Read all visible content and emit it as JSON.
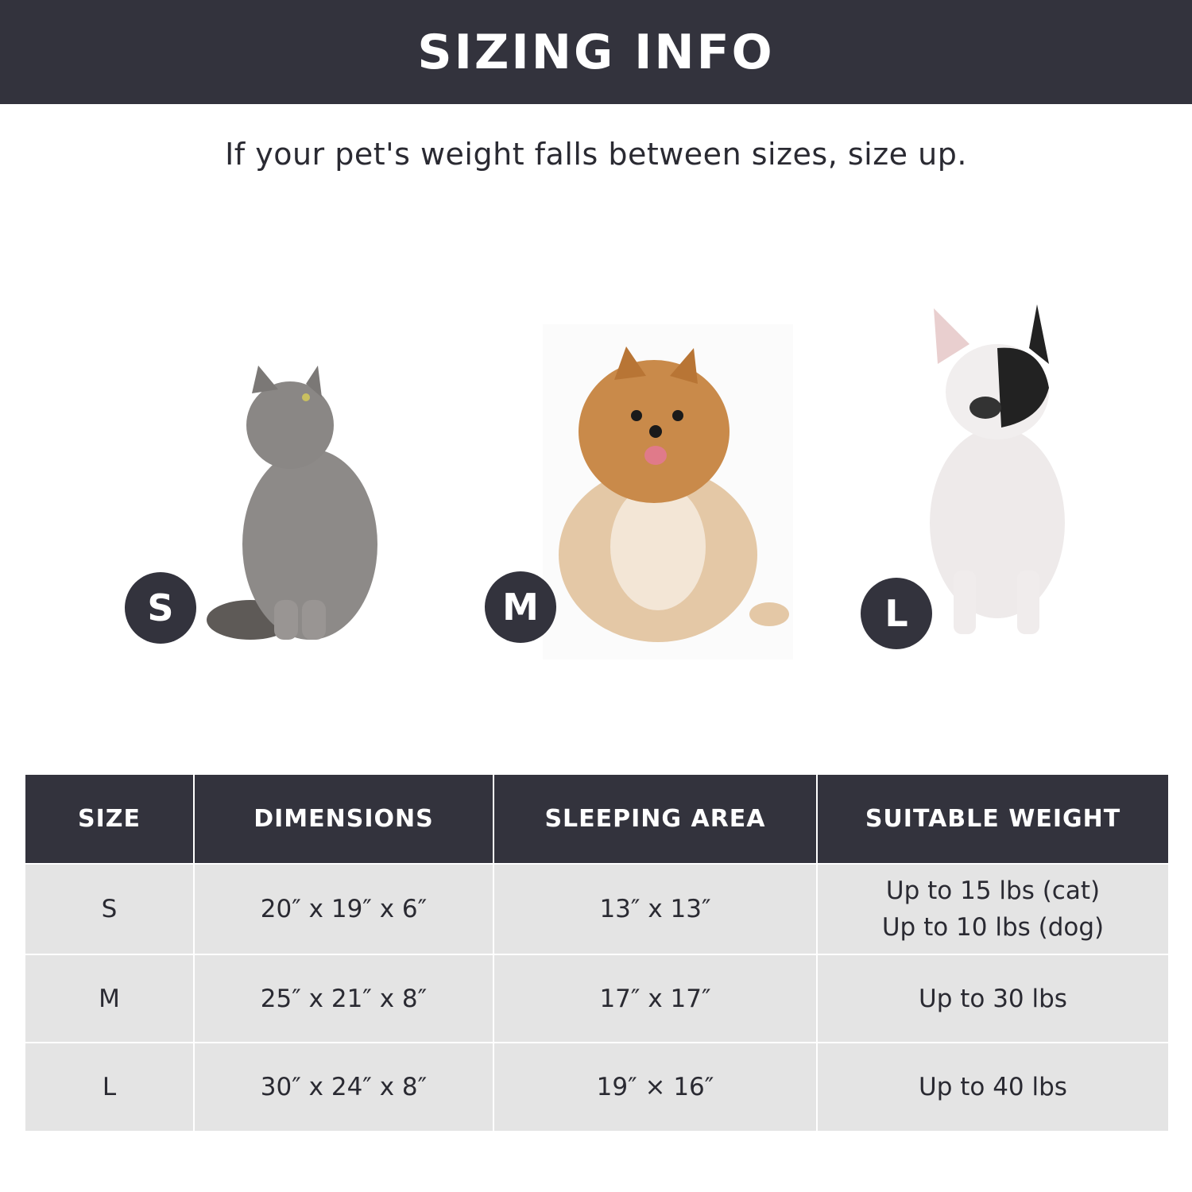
{
  "header": {
    "title": "SIZING INFO"
  },
  "subtitle": "If your pet's weight falls between sizes, size up.",
  "pets": [
    {
      "badge": "S",
      "animal": "gray cat"
    },
    {
      "badge": "M",
      "animal": "pomeranian"
    },
    {
      "badge": "L",
      "animal": "french bulldog"
    }
  ],
  "colors": {
    "dark": "#33333d",
    "row_fill": "#e4e4e4"
  },
  "table": {
    "headers": [
      "SIZE",
      "DIMENSIONS",
      "SLEEPING AREA",
      "SUITABLE WEIGHT"
    ],
    "rows": [
      {
        "size": "S",
        "dimensions": "20″ x 19″ x 6″",
        "sleeping_area": "13″ x 13″",
        "weight": [
          "Up to 15 lbs (cat)",
          "Up to 10 lbs (dog)"
        ]
      },
      {
        "size": "M",
        "dimensions": "25″ x 21″ x 8″",
        "sleeping_area": "17″ x 17″",
        "weight": [
          "Up to 30 lbs"
        ]
      },
      {
        "size": "L",
        "dimensions": "30″ x 24″ x 8″",
        "sleeping_area": "19″ × 16″",
        "weight": [
          "Up to 40 lbs"
        ]
      }
    ]
  }
}
